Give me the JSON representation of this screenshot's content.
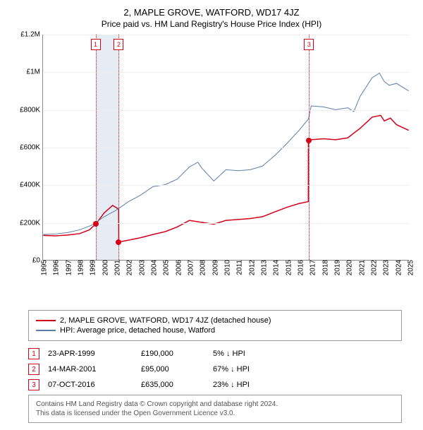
{
  "title": "2, MAPLE GROVE, WATFORD, WD17 4JZ",
  "subtitle": "Price paid vs. HM Land Registry's House Price Index (HPI)",
  "chart": {
    "type": "line",
    "y": {
      "min": 0,
      "max": 1200000,
      "ticks": [
        0,
        200000,
        400000,
        600000,
        800000,
        1000000,
        1200000
      ],
      "tick_labels": [
        "£0",
        "£200K",
        "£400K",
        "£600K",
        "£800K",
        "£1M",
        "£1.2M"
      ],
      "label_fontsize": 10
    },
    "x": {
      "min": 1995,
      "max": 2025,
      "ticks": [
        1995,
        1996,
        1997,
        1998,
        1999,
        2000,
        2001,
        2002,
        2003,
        2004,
        2005,
        2006,
        2007,
        2008,
        2009,
        2010,
        2011,
        2012,
        2013,
        2014,
        2015,
        2016,
        2017,
        2018,
        2019,
        2020,
        2021,
        2022,
        2023,
        2024,
        2025
      ],
      "label_fontsize": 10
    },
    "grid_color": "#eeeeee",
    "axis_color": "#888888",
    "background_color": "#ffffff",
    "band": {
      "from": 1999.3,
      "to": 2001.2,
      "color": "#e6ecf3"
    },
    "series": [
      {
        "name": "price_paid",
        "label": "2, MAPLE GROVE, WATFORD, WD17 4JZ (detached house)",
        "color": "#d4001a",
        "width": 1.5,
        "data": [
          [
            1995,
            130000
          ],
          [
            1996,
            128000
          ],
          [
            1997,
            132000
          ],
          [
            1998,
            140000
          ],
          [
            1998.8,
            160000
          ],
          [
            1999.3,
            190000
          ],
          [
            1999.31,
            190000
          ],
          [
            2000,
            250000
          ],
          [
            2000.7,
            290000
          ],
          [
            2001.19,
            270000
          ],
          [
            2001.2,
            95000
          ],
          [
            2002,
            105000
          ],
          [
            2003,
            118000
          ],
          [
            2004,
            135000
          ],
          [
            2005,
            150000
          ],
          [
            2006,
            175000
          ],
          [
            2007,
            210000
          ],
          [
            2008,
            200000
          ],
          [
            2009,
            190000
          ],
          [
            2010,
            210000
          ],
          [
            2011,
            215000
          ],
          [
            2012,
            220000
          ],
          [
            2013,
            230000
          ],
          [
            2014,
            255000
          ],
          [
            2015,
            280000
          ],
          [
            2016,
            300000
          ],
          [
            2016.76,
            310000
          ],
          [
            2016.77,
            635000
          ],
          [
            2017,
            640000
          ],
          [
            2018,
            645000
          ],
          [
            2019,
            640000
          ],
          [
            2020,
            650000
          ],
          [
            2021,
            700000
          ],
          [
            2022,
            760000
          ],
          [
            2022.7,
            770000
          ],
          [
            2023,
            740000
          ],
          [
            2023.5,
            755000
          ],
          [
            2024,
            720000
          ],
          [
            2024.5,
            705000
          ],
          [
            2025,
            690000
          ]
        ]
      },
      {
        "name": "hpi",
        "label": "HPI: Average price, detached house, Watford",
        "color": "#5b7ea8",
        "width": 1,
        "data": [
          [
            1995,
            135000
          ],
          [
            1996,
            138000
          ],
          [
            1997,
            145000
          ],
          [
            1998,
            160000
          ],
          [
            1999,
            185000
          ],
          [
            2000,
            230000
          ],
          [
            2001,
            265000
          ],
          [
            2002,
            310000
          ],
          [
            2003,
            345000
          ],
          [
            2004,
            390000
          ],
          [
            2005,
            400000
          ],
          [
            2006,
            430000
          ],
          [
            2007,
            495000
          ],
          [
            2007.7,
            520000
          ],
          [
            2008,
            490000
          ],
          [
            2009,
            420000
          ],
          [
            2010,
            480000
          ],
          [
            2011,
            475000
          ],
          [
            2012,
            480000
          ],
          [
            2013,
            500000
          ],
          [
            2014,
            555000
          ],
          [
            2015,
            620000
          ],
          [
            2016,
            690000
          ],
          [
            2016.77,
            750000
          ],
          [
            2017,
            820000
          ],
          [
            2018,
            815000
          ],
          [
            2019,
            800000
          ],
          [
            2020,
            810000
          ],
          [
            2020.5,
            790000
          ],
          [
            2021,
            870000
          ],
          [
            2022,
            970000
          ],
          [
            2022.6,
            995000
          ],
          [
            2023,
            950000
          ],
          [
            2023.4,
            930000
          ],
          [
            2024,
            940000
          ],
          [
            2024.5,
            920000
          ],
          [
            2025,
            900000
          ]
        ]
      }
    ],
    "markers": [
      {
        "n": "1",
        "x": 1999.3,
        "y": 190000,
        "color": "#d4001a"
      },
      {
        "n": "2",
        "x": 2001.2,
        "y": 95000,
        "color": "#d4001a"
      },
      {
        "n": "3",
        "x": 2016.77,
        "y": 635000,
        "color": "#d4001a"
      }
    ],
    "marker_box_color": "#d4001a",
    "marker_line_color": "#d4001a"
  },
  "legend": {
    "border_color": "#999999",
    "items": [
      {
        "color": "#d4001a",
        "label": "2, MAPLE GROVE, WATFORD, WD17 4JZ (detached house)"
      },
      {
        "color": "#5b7ea8",
        "label": "HPI: Average price, detached house, Watford"
      }
    ]
  },
  "transactions": {
    "box_color": "#d4001a",
    "rows": [
      {
        "n": "1",
        "date": "23-APR-1999",
        "price": "£190,000",
        "pct": "5% ↓ HPI"
      },
      {
        "n": "2",
        "date": "14-MAR-2001",
        "price": "£95,000",
        "pct": "67% ↓ HPI"
      },
      {
        "n": "3",
        "date": "07-OCT-2016",
        "price": "£635,000",
        "pct": "23% ↓ HPI"
      }
    ]
  },
  "footer": {
    "line1": "Contains HM Land Registry data © Crown copyright and database right 2024.",
    "line2": "This data is licensed under the Open Government Licence v3.0.",
    "border_color": "#999999",
    "text_color": "#555555"
  }
}
